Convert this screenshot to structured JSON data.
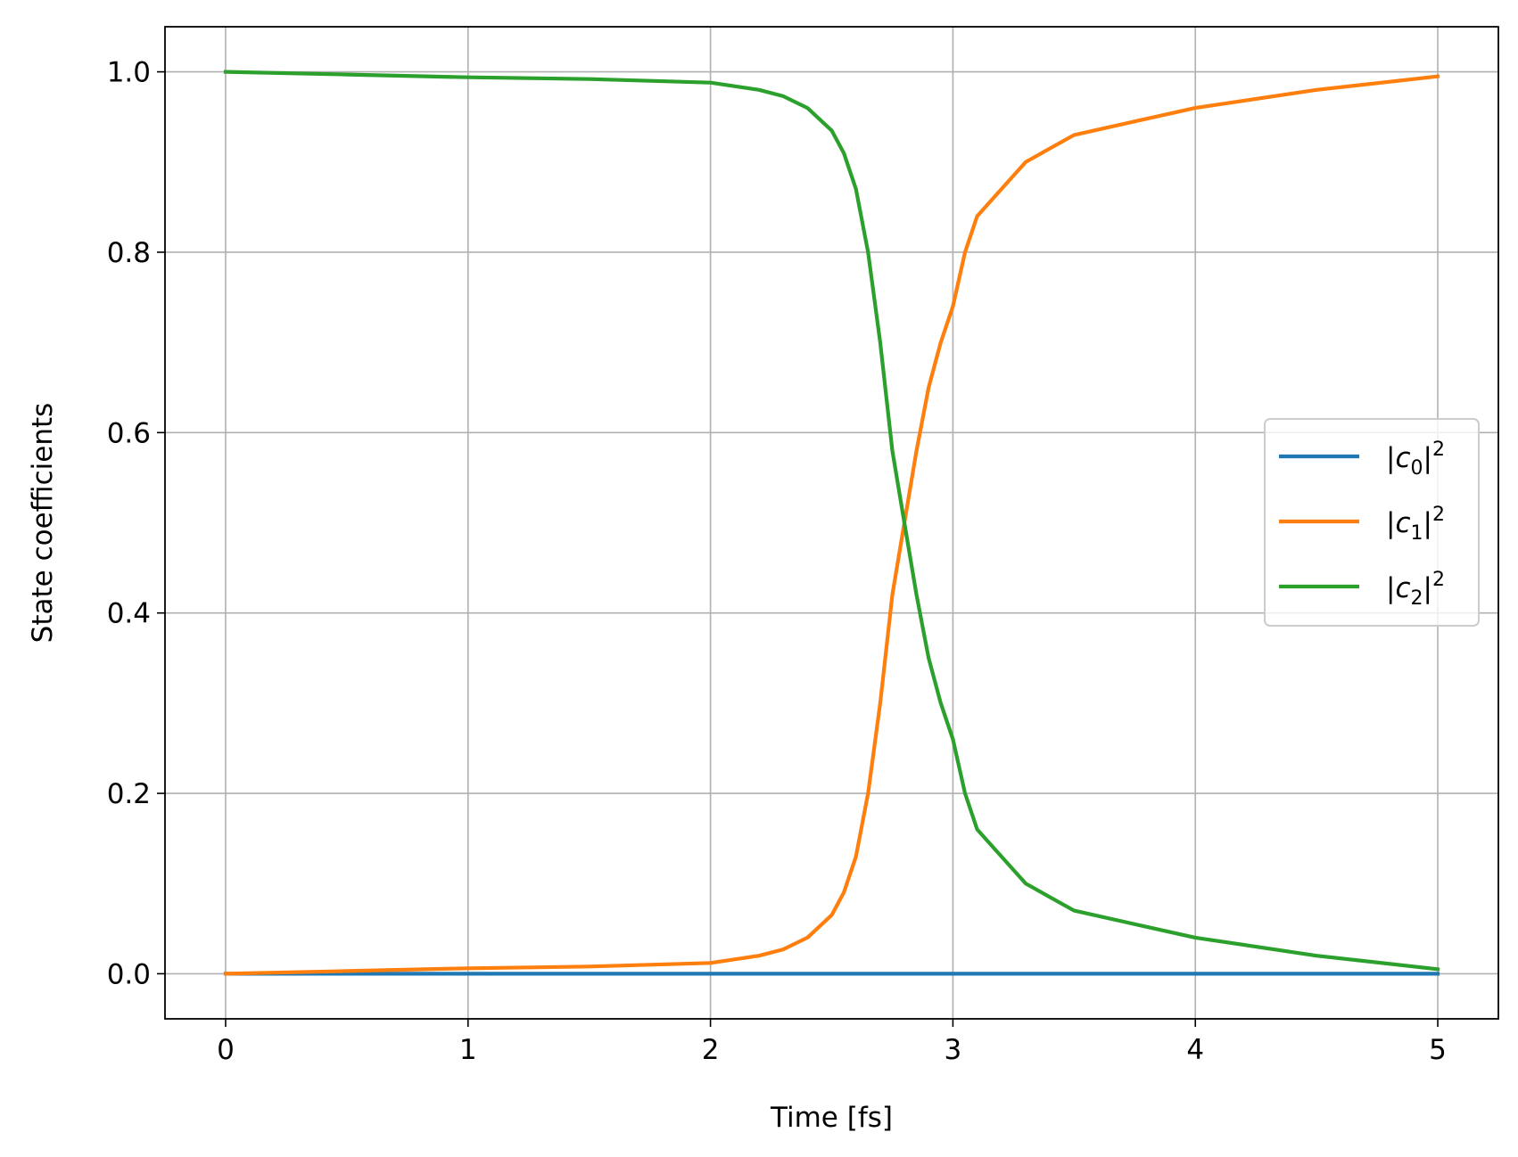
{
  "chart_data": {
    "type": "line",
    "xlabel": "Time [fs]",
    "ylabel": "State coefficients",
    "xlim": [
      -0.25,
      5.25
    ],
    "ylim": [
      -0.05,
      1.05
    ],
    "xticks": [
      0,
      1,
      2,
      3,
      4,
      5
    ],
    "xtick_labels": [
      "0",
      "1",
      "2",
      "3",
      "4",
      "5"
    ],
    "yticks": [
      0.0,
      0.2,
      0.4,
      0.6,
      0.8,
      1.0
    ],
    "ytick_labels": [
      "0.0",
      "0.2",
      "0.4",
      "0.6",
      "0.8",
      "1.0"
    ],
    "grid": true,
    "legend_position": "center-right",
    "x": [
      0,
      0.5,
      1.0,
      1.5,
      2.0,
      2.2,
      2.3,
      2.4,
      2.5,
      2.55,
      2.6,
      2.65,
      2.7,
      2.75,
      2.8,
      2.85,
      2.9,
      2.95,
      3.0,
      3.05,
      3.1,
      3.2,
      3.3,
      3.4,
      3.5,
      3.75,
      4.0,
      4.5,
      5.0
    ],
    "series": [
      {
        "name": "|c0|²",
        "label_base": "c",
        "label_sub": "0",
        "label_sup": "2",
        "color": "#1f77b4",
        "values": [
          0,
          0,
          0,
          0,
          0,
          0,
          0,
          0,
          0,
          0,
          0,
          0,
          0,
          0,
          0,
          0,
          0,
          0,
          0,
          0,
          0,
          0,
          0,
          0,
          0,
          0,
          0,
          0,
          0
        ]
      },
      {
        "name": "|c1|²",
        "label_base": "c",
        "label_sub": "1",
        "label_sup": "2",
        "color": "#ff7f0e",
        "values": [
          0.0,
          0.003,
          0.006,
          0.008,
          0.012,
          0.02,
          0.027,
          0.04,
          0.065,
          0.09,
          0.13,
          0.2,
          0.3,
          0.42,
          0.5,
          0.58,
          0.65,
          0.7,
          0.74,
          0.8,
          0.84,
          0.87,
          0.9,
          0.915,
          0.93,
          0.945,
          0.96,
          0.98,
          0.995
        ]
      },
      {
        "name": "|c2|²",
        "label_base": "c",
        "label_sub": "2",
        "label_sup": "2",
        "color": "#2ca02c",
        "values": [
          1.0,
          0.997,
          0.994,
          0.992,
          0.988,
          0.98,
          0.973,
          0.96,
          0.935,
          0.91,
          0.87,
          0.8,
          0.7,
          0.58,
          0.5,
          0.42,
          0.35,
          0.3,
          0.26,
          0.2,
          0.16,
          0.13,
          0.1,
          0.085,
          0.07,
          0.055,
          0.04,
          0.02,
          0.005
        ]
      }
    ]
  }
}
